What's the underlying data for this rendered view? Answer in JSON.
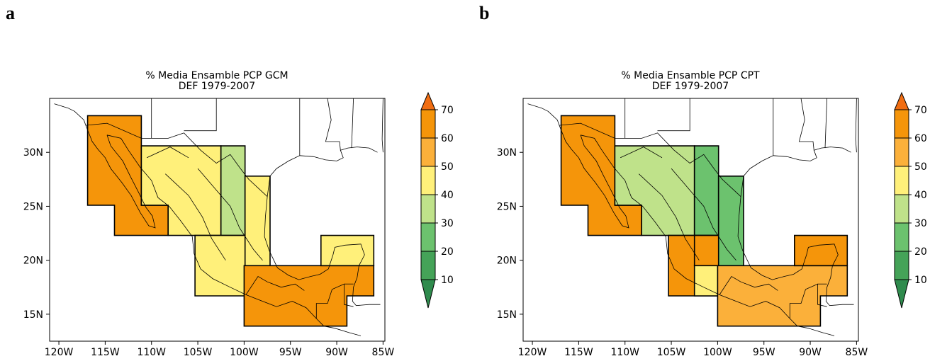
{
  "panels": [
    {
      "letter": "a",
      "title_line1": "% Media Ensamble PCP GCM",
      "title_line2": "DEF 1979-2007",
      "regions": [
        {
          "poly": [
            [
              -116.9,
              33.4
            ],
            [
              -111.1,
              33.4
            ],
            [
              -111.1,
              25.1
            ],
            [
              -108.2,
              25.1
            ],
            [
              -108.2,
              22.3
            ],
            [
              -114.0,
              22.3
            ],
            [
              -114.0,
              25.1
            ],
            [
              -116.9,
              25.1
            ]
          ],
          "value": 65
        },
        {
          "poly": [
            [
              -111.1,
              30.6
            ],
            [
              -102.5,
              30.6
            ],
            [
              -102.5,
              22.3
            ],
            [
              -108.2,
              22.3
            ],
            [
              -108.2,
              25.1
            ],
            [
              -111.1,
              25.1
            ]
          ],
          "value": 45
        },
        {
          "poly": [
            [
              -102.5,
              30.6
            ],
            [
              -99.9,
              30.6
            ],
            [
              -99.9,
              22.3
            ],
            [
              -102.5,
              22.3
            ]
          ],
          "value": 35
        },
        {
          "poly": [
            [
              -99.9,
              27.8
            ],
            [
              -97.2,
              27.8
            ],
            [
              -97.2,
              19.5
            ],
            [
              -99.9,
              19.5
            ]
          ],
          "value": 45
        },
        {
          "poly": [
            [
              -105.3,
              22.3
            ],
            [
              -99.9,
              22.3
            ],
            [
              -99.9,
              16.7
            ],
            [
              -105.3,
              16.7
            ]
          ],
          "value": 45
        },
        {
          "poly": [
            [
              -100.0,
              19.5
            ],
            [
              -86.0,
              19.5
            ],
            [
              -86.0,
              16.7
            ],
            [
              -88.9,
              16.7
            ],
            [
              -88.9,
              13.9
            ],
            [
              -100.0,
              13.9
            ]
          ],
          "value": 65
        },
        {
          "poly": [
            [
              -91.7,
              22.3
            ],
            [
              -86.0,
              22.3
            ],
            [
              -86.0,
              19.5
            ],
            [
              -91.7,
              19.5
            ]
          ],
          "value": 45
        }
      ]
    },
    {
      "letter": "b",
      "title_line1": "% Media Ensamble PCP CPT",
      "title_line2": "DEF 1979-2007",
      "regions": [
        {
          "poly": [
            [
              -116.9,
              33.4
            ],
            [
              -111.1,
              33.4
            ],
            [
              -111.1,
              25.1
            ],
            [
              -108.2,
              25.1
            ],
            [
              -108.2,
              22.3
            ],
            [
              -114.0,
              22.3
            ],
            [
              -114.0,
              25.1
            ],
            [
              -116.9,
              25.1
            ]
          ],
          "value": 62
        },
        {
          "poly": [
            [
              -111.1,
              30.6
            ],
            [
              -102.5,
              30.6
            ],
            [
              -102.5,
              22.3
            ],
            [
              -108.2,
              22.3
            ],
            [
              -108.2,
              25.1
            ],
            [
              -111.1,
              25.1
            ]
          ],
          "value": 35
        },
        {
          "poly": [
            [
              -102.5,
              30.6
            ],
            [
              -99.9,
              30.6
            ],
            [
              -99.9,
              22.3
            ],
            [
              -102.5,
              22.3
            ]
          ],
          "value": 25
        },
        {
          "poly": [
            [
              -99.9,
              27.8
            ],
            [
              -97.2,
              27.8
            ],
            [
              -97.2,
              19.5
            ],
            [
              -99.9,
              19.5
            ]
          ],
          "value": 25
        },
        {
          "poly": [
            [
              -105.3,
              22.3
            ],
            [
              -99.9,
              22.3
            ],
            [
              -99.9,
              16.7
            ],
            [
              -105.3,
              16.7
            ]
          ],
          "value": 62
        },
        {
          "poly": [
            [
              -102.5,
              22.3
            ],
            [
              -99.9,
              22.3
            ],
            [
              -99.9,
              19.5
            ],
            [
              -102.5,
              19.5
            ]
          ],
          "value": 65
        },
        {
          "poly": [
            [
              -102.5,
              19.5
            ],
            [
              -97.2,
              19.5
            ],
            [
              -97.2,
              16.7
            ],
            [
              -102.5,
              16.7
            ]
          ],
          "value": 45
        },
        {
          "poly": [
            [
              -100.0,
              19.5
            ],
            [
              -86.0,
              19.5
            ],
            [
              -86.0,
              16.7
            ],
            [
              -88.9,
              16.7
            ],
            [
              -88.9,
              13.9
            ],
            [
              -100.0,
              13.9
            ]
          ],
          "value": 55
        },
        {
          "poly": [
            [
              -91.7,
              22.3
            ],
            [
              -86.0,
              22.3
            ],
            [
              -86.0,
              19.5
            ],
            [
              -91.7,
              19.5
            ]
          ],
          "value": 65
        }
      ]
    }
  ],
  "map": {
    "lon_range": [
      -121,
      -84.8
    ],
    "lat_range": [
      12.5,
      35
    ],
    "xticks": [
      -120,
      -115,
      -110,
      -105,
      -100,
      -95,
      -90,
      -85
    ],
    "xtick_labels": [
      "120W",
      "115W",
      "110W",
      "105W",
      "100W",
      "95W",
      "90W",
      "85W"
    ],
    "yticks": [
      15,
      20,
      25,
      30
    ],
    "ytick_labels": [
      "15N",
      "20N",
      "25N",
      "30N"
    ]
  },
  "colorbar": {
    "levels": [
      10,
      20,
      30,
      40,
      50,
      60,
      70
    ],
    "labels": [
      "10",
      "20",
      "30",
      "40",
      "50",
      "60",
      "70"
    ],
    "colors": [
      "#2f8b4d",
      "#45a358",
      "#6cc26e",
      "#bfe28a",
      "#fff07a",
      "#fbb03a",
      "#f5950a",
      "#f06d12"
    ]
  },
  "chart_data": [
    {
      "type": "heatmap",
      "title": "% Media Ensamble PCP GCM\nDEF 1979-2007",
      "xlabel": "",
      "ylabel": "",
      "xlim": [
        -121,
        -84.8
      ],
      "ylim": [
        12.5,
        35
      ],
      "values": [
        65,
        45,
        35,
        45,
        45,
        65,
        45
      ],
      "colorbar_levels": [
        10,
        20,
        30,
        40,
        50,
        60,
        70
      ]
    },
    {
      "type": "heatmap",
      "title": "% Media Ensamble PCP CPT\nDEF 1979-2007",
      "xlabel": "",
      "ylabel": "",
      "xlim": [
        -121,
        -84.8
      ],
      "ylim": [
        12.5,
        35
      ],
      "values": [
        62,
        35,
        25,
        25,
        62,
        65,
        45,
        55,
        65
      ],
      "colorbar_levels": [
        10,
        20,
        30,
        40,
        50,
        60,
        70
      ]
    }
  ]
}
